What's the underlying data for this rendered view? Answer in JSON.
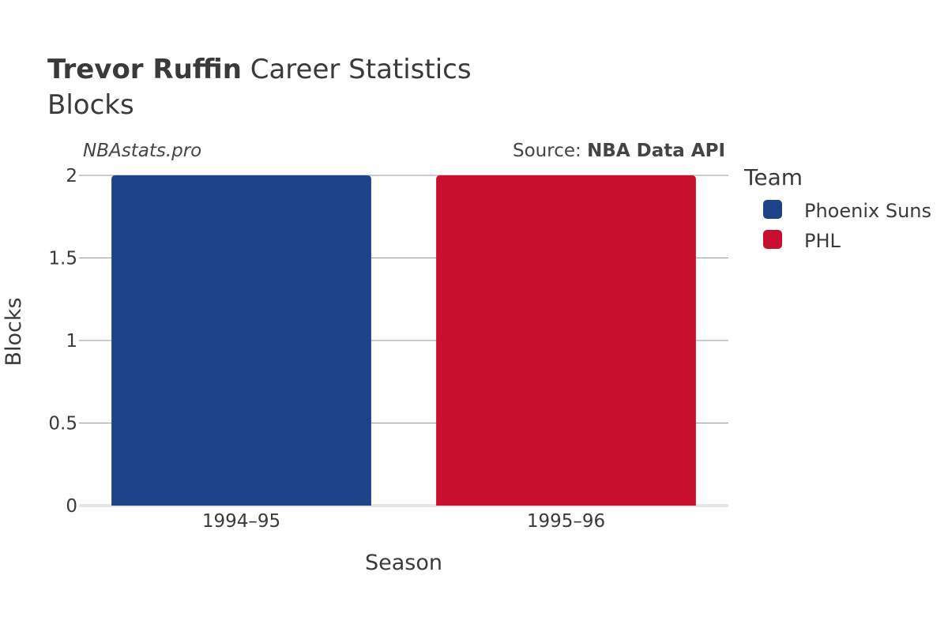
{
  "header": {
    "title_bold": "Trevor Ruffin",
    "title_rest": " Career Statistics",
    "subtitle": "Blocks"
  },
  "watermark": "NBAstats.pro",
  "source": {
    "prefix": "Source: ",
    "name": "NBA Data API"
  },
  "legend": {
    "title": "Team",
    "items": [
      {
        "label": "Phoenix Suns",
        "color": "#1d428a"
      },
      {
        "label": "PHL",
        "color": "#c8102e"
      }
    ]
  },
  "chart_data": {
    "type": "bar",
    "categories": [
      "1994–95",
      "1995–96"
    ],
    "series": [
      {
        "name": "Phoenix Suns",
        "values": [
          2,
          null
        ],
        "color": "#1d428a"
      },
      {
        "name": "PHL",
        "values": [
          null,
          2
        ],
        "color": "#c8102e"
      }
    ],
    "xlabel": "Season",
    "ylabel": "Blocks",
    "ylim": [
      0,
      2
    ],
    "yticks": [
      0,
      0.5,
      1,
      1.5,
      2
    ],
    "ytick_labels": [
      "0",
      "0.5",
      "1",
      "1.5",
      "2"
    ],
    "grid": true,
    "legend_position": "right"
  }
}
